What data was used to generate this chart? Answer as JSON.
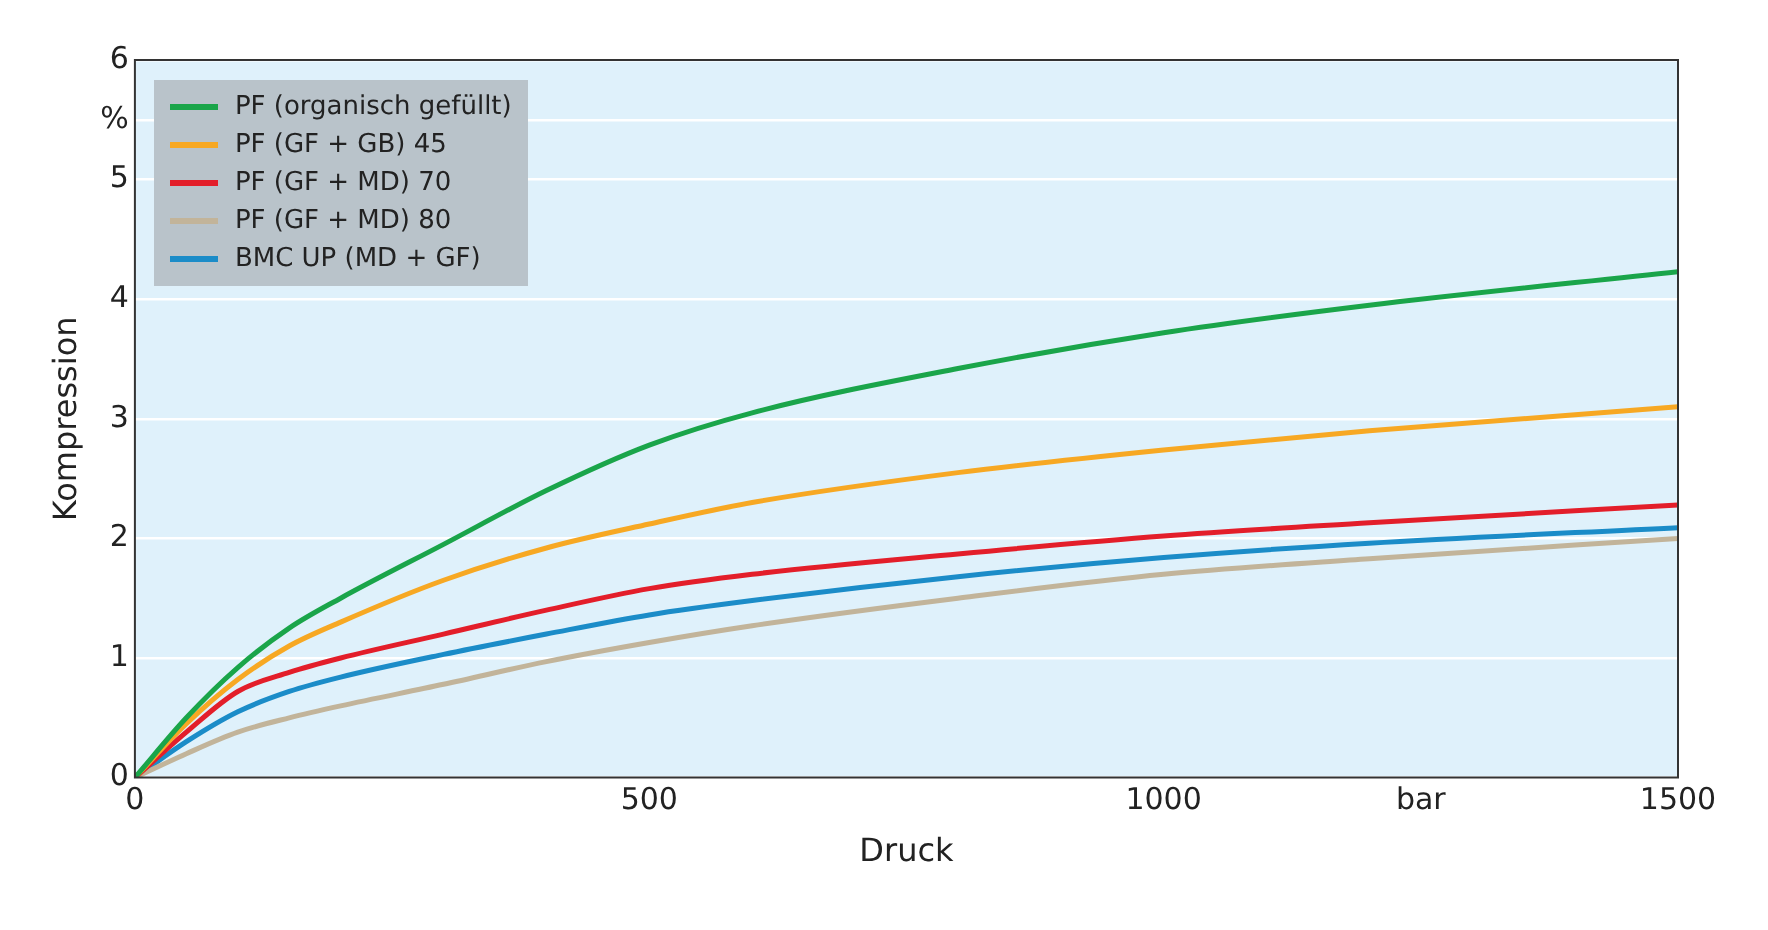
{
  "chart_data": {
    "type": "line",
    "xlabel": "Druck",
    "ylabel": "Kompression",
    "xlim": [
      0,
      1500
    ],
    "ylim": [
      0,
      6
    ],
    "xticks": [
      0,
      500,
      1000,
      {
        "value": 1250,
        "label": "bar"
      },
      1500
    ],
    "yticks": [
      0,
      1,
      2,
      3,
      4,
      5,
      {
        "value": 5.5,
        "label": "%"
      },
      6
    ],
    "x": [
      0,
      50,
      100,
      150,
      200,
      300,
      400,
      500,
      600,
      800,
      1000,
      1200,
      1500
    ],
    "grid": "y",
    "legend": "top left",
    "marker": "none",
    "line_style": "solid",
    "series": [
      {
        "name": "PF (organisch gefüllt)",
        "color": "#1aa54a",
        "values": [
          0,
          0.5,
          0.92,
          1.25,
          1.5,
          1.95,
          2.4,
          2.78,
          3.05,
          3.42,
          3.72,
          3.95,
          4.23
        ]
      },
      {
        "name": "PF (GF + GB) 45",
        "color": "#f7a823",
        "values": [
          0,
          0.45,
          0.82,
          1.1,
          1.3,
          1.65,
          1.92,
          2.12,
          2.3,
          2.55,
          2.74,
          2.9,
          3.1
        ]
      },
      {
        "name": "PF (GF + MD) 70",
        "color": "#e31e2a",
        "values": [
          0,
          0.38,
          0.72,
          0.88,
          1.0,
          1.2,
          1.4,
          1.58,
          1.7,
          1.87,
          2.02,
          2.13,
          2.28
        ]
      },
      {
        "name": "PF (GF + MD) 80",
        "color": "#c2b49a",
        "values": [
          0,
          0.2,
          0.38,
          0.5,
          0.6,
          0.78,
          0.97,
          1.13,
          1.27,
          1.5,
          1.7,
          1.83,
          2.0
        ]
      },
      {
        "name": "BMC UP (MD + GF)",
        "color": "#1b8cc8",
        "values": [
          0,
          0.3,
          0.55,
          0.72,
          0.84,
          1.03,
          1.2,
          1.36,
          1.48,
          1.68,
          1.84,
          1.96,
          2.09
        ]
      }
    ]
  }
}
